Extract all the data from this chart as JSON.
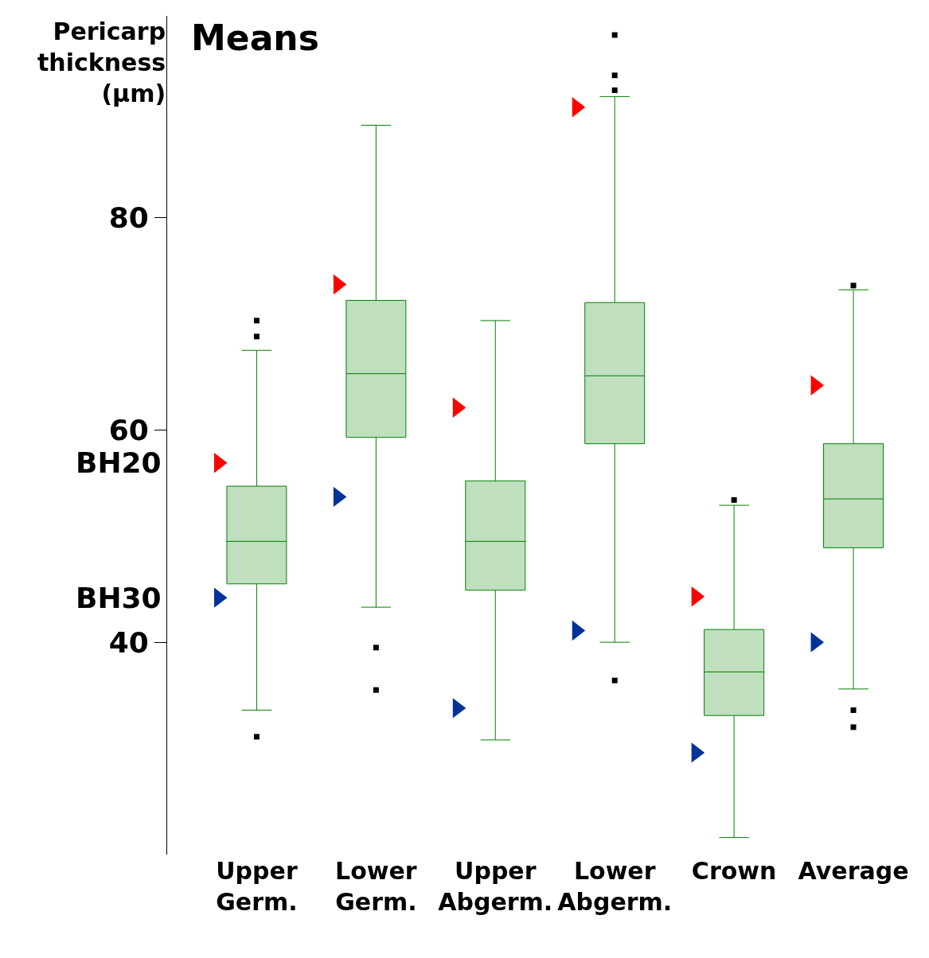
{
  "chart_data": {
    "type": "box",
    "title": "Means",
    "ylabel": "Pericarp thickness (µm)",
    "categories": [
      "Upper Germ.",
      "Lower Germ.",
      "Upper Abgerm.",
      "Lower Abgerm.",
      "Crown",
      "Average"
    ],
    "color": "#008000",
    "boxes": [
      {
        "low": 33.6,
        "q1": 45.5,
        "median": 49.5,
        "q3": 54.7,
        "high": 67.5,
        "outliers": [
          70.3,
          68.8,
          31.1
        ]
      },
      {
        "low": 43.3,
        "q1": 59.3,
        "median": 65.3,
        "q3": 72.2,
        "high": 88.7,
        "outliers": [
          39.5,
          35.5
        ]
      },
      {
        "low": 30.8,
        "q1": 44.9,
        "median": 49.5,
        "q3": 55.2,
        "high": 70.3
      },
      {
        "low": 40.0,
        "q1": 58.7,
        "median": 65.1,
        "q3": 72.0,
        "high": 91.4,
        "outliers": [
          97.2,
          93.4,
          92.0,
          36.4
        ]
      },
      {
        "low": 21.6,
        "q1": 33.1,
        "median": 37.2,
        "q3": 41.2,
        "high": 52.9,
        "outliers": [
          53.4
        ]
      },
      {
        "low": 35.6,
        "q1": 48.9,
        "median": 53.5,
        "q3": 58.7,
        "high": 73.2,
        "outliers": [
          73.6,
          33.6,
          32.0
        ]
      }
    ],
    "series": [
      {
        "name": "BH20",
        "type": "scatter",
        "marker": "triangle",
        "color": "#ff0000",
        "values": [
          56.9,
          73.7,
          62.1,
          90.4,
          44.3,
          64.2
        ]
      },
      {
        "name": "BH30",
        "type": "scatter",
        "marker": "triangle",
        "color": "#003399",
        "values": [
          44.2,
          53.7,
          33.8,
          41.1,
          29.6,
          40.0
        ]
      }
    ],
    "ylim": [
      20,
      99
    ],
    "yticks": [
      40,
      60,
      80
    ],
    "legend": false
  }
}
